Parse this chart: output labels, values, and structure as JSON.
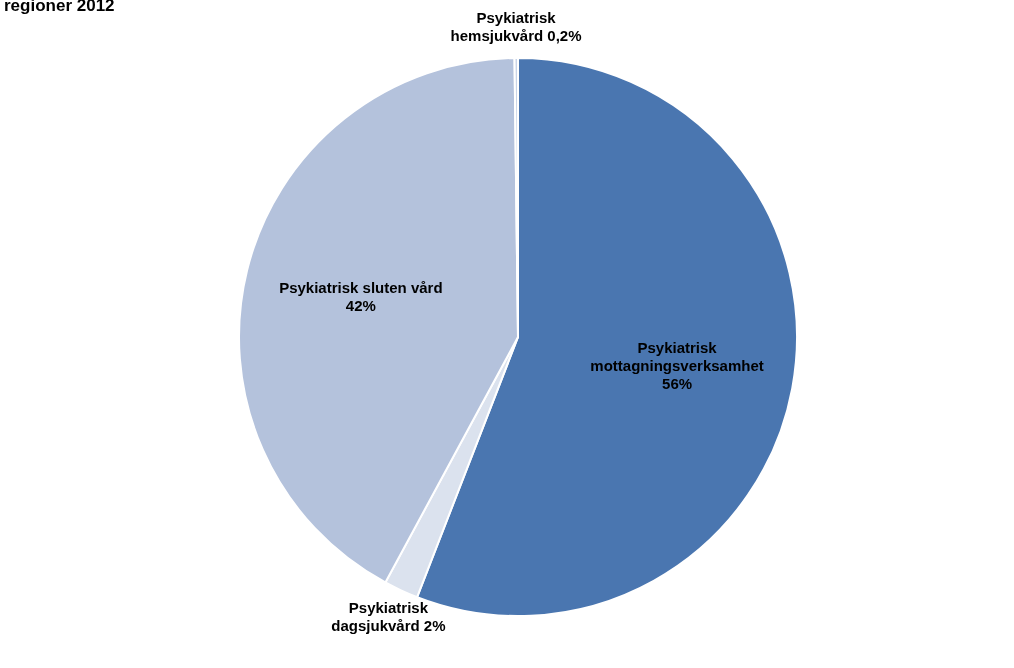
{
  "chart_data": {
    "type": "pie",
    "title": "regioner 2012",
    "categories": [
      "Psykiatrisk mottagningsverksamhet",
      "Psykiatrisk dagsjukvård",
      "Psykiatrisk sluten vård",
      "Psykiatrisk hemsjukvård"
    ],
    "values": [
      56,
      2,
      42,
      0.2
    ],
    "value_labels": [
      "56%",
      "2%",
      "42%",
      "0,2%"
    ],
    "colors": [
      "#4a76b0",
      "#dbe2ee",
      "#b4c2dc",
      "#c9d4e7"
    ],
    "legend": false
  }
}
